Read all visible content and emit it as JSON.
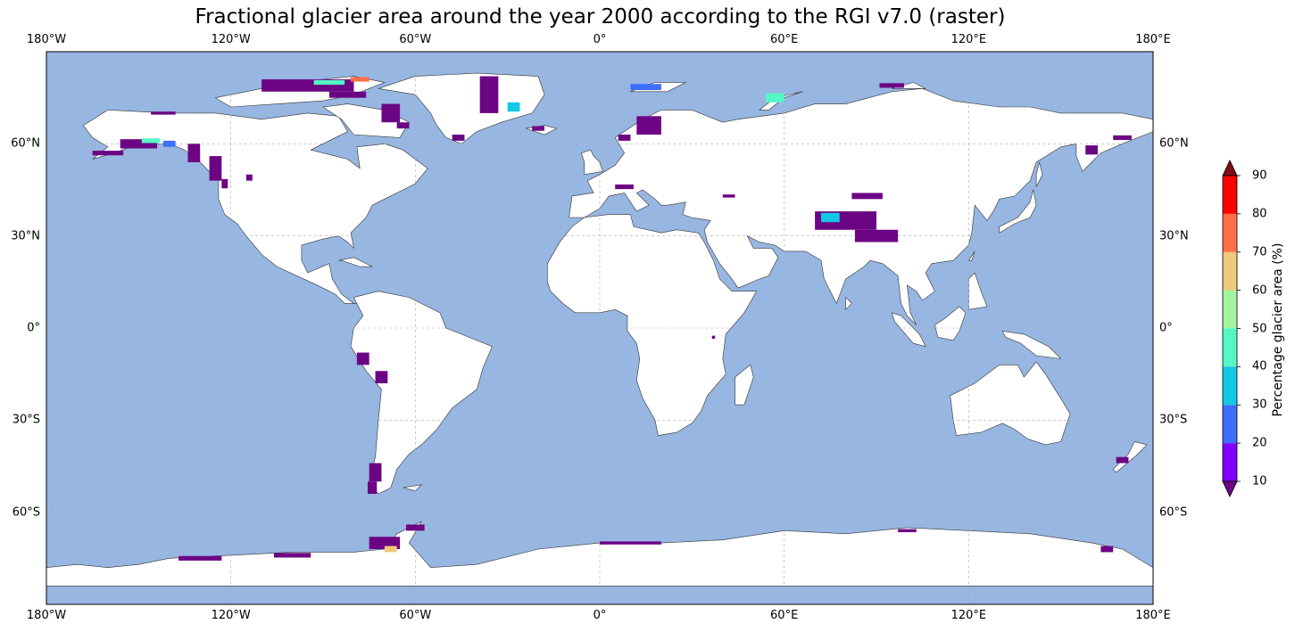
{
  "title": "Fractional glacier area around the year 2000 according to the RGI v7.0 (raster)",
  "lon_ticks": [
    "180°W",
    "120°W",
    "60°W",
    "0°",
    "60°E",
    "120°E",
    "180°E"
  ],
  "lat_ticks": [
    "60°N",
    "30°N",
    "0°",
    "30°S",
    "60°S"
  ],
  "lon_tick_values": [
    -180,
    -120,
    -60,
    0,
    60,
    120,
    180
  ],
  "lat_tick_values": [
    60,
    30,
    0,
    -30,
    -60
  ],
  "extent": {
    "lon": [
      -180,
      180
    ],
    "lat": [
      -90,
      90
    ]
  },
  "colors": {
    "ocean": "#97b6e1",
    "land": "#ffffff",
    "coast": "#333333",
    "gridline": "#aaaaaa",
    "glacier_low": "#6c0584"
  },
  "colorbar": {
    "label": "Percentage glacier area (%)",
    "tick_labels": [
      "10",
      "20",
      "30",
      "40",
      "50",
      "60",
      "70",
      "80",
      "90"
    ],
    "bounds": [
      10,
      20,
      30,
      40,
      50,
      60,
      70,
      80,
      90
    ],
    "colors": [
      "#8000ff",
      "#3e6ffa",
      "#12c8e6",
      "#56f6c6",
      "#a0f59e",
      "#f0c97a",
      "#ff7048",
      "#ff0000"
    ],
    "under_color": "#6c0584",
    "over_color": "#7f0d1c",
    "extend": "both"
  },
  "glacier_cells": [
    {
      "lon": -150,
      "lat": 60,
      "w": 12,
      "h": 3,
      "v": 15
    },
    {
      "lon": -146,
      "lat": 61,
      "w": 6,
      "h": 1.5,
      "v": 45
    },
    {
      "lon": -140,
      "lat": 60,
      "w": 4,
      "h": 2,
      "v": 25
    },
    {
      "lon": -132,
      "lat": 57,
      "w": 4,
      "h": 6,
      "v": 15
    },
    {
      "lon": -125,
      "lat": 52,
      "w": 4,
      "h": 8,
      "v": 15
    },
    {
      "lon": -122,
      "lat": 47,
      "w": 2,
      "h": 3,
      "v": 15
    },
    {
      "lon": -114,
      "lat": 49,
      "w": 2,
      "h": 2,
      "v": 15
    },
    {
      "lon": -160,
      "lat": 57,
      "w": 10,
      "h": 1.5,
      "v": 15
    },
    {
      "lon": -142,
      "lat": 70,
      "w": 8,
      "h": 1,
      "v": 15
    },
    {
      "lon": -95,
      "lat": 79,
      "w": 30,
      "h": 4,
      "v": 15
    },
    {
      "lon": -88,
      "lat": 80,
      "w": 10,
      "h": 1.5,
      "v": 45
    },
    {
      "lon": -78,
      "lat": 81,
      "w": 6,
      "h": 1.5,
      "v": 75
    },
    {
      "lon": -82,
      "lat": 76,
      "w": 12,
      "h": 2,
      "v": 15
    },
    {
      "lon": -68,
      "lat": 70,
      "w": 6,
      "h": 6,
      "v": 15
    },
    {
      "lon": -64,
      "lat": 66,
      "w": 4,
      "h": 2,
      "v": 15
    },
    {
      "lon": -36,
      "lat": 76,
      "w": 6,
      "h": 12,
      "v": 15
    },
    {
      "lon": -28,
      "lat": 72,
      "w": 4,
      "h": 3,
      "v": 35
    },
    {
      "lon": -46,
      "lat": 62,
      "w": 4,
      "h": 2,
      "v": 15
    },
    {
      "lon": -20,
      "lat": 65,
      "w": 4,
      "h": 1.5,
      "v": 15
    },
    {
      "lon": 15,
      "lat": 78.5,
      "w": 10,
      "h": 2,
      "v": 25
    },
    {
      "lon": 57,
      "lat": 75,
      "w": 6,
      "h": 3,
      "v": 45
    },
    {
      "lon": 95,
      "lat": 79,
      "w": 8,
      "h": 1.5,
      "v": 15
    },
    {
      "lon": 16,
      "lat": 66,
      "w": 8,
      "h": 6,
      "v": 15
    },
    {
      "lon": 8,
      "lat": 62,
      "w": 4,
      "h": 2,
      "v": 15
    },
    {
      "lon": 8,
      "lat": 46,
      "w": 6,
      "h": 1.5,
      "v": 15
    },
    {
      "lon": 42,
      "lat": 43,
      "w": 4,
      "h": 1,
      "v": 15
    },
    {
      "lon": 80,
      "lat": 35,
      "w": 20,
      "h": 6,
      "v": 15
    },
    {
      "lon": 75,
      "lat": 36,
      "w": 6,
      "h": 3,
      "v": 35
    },
    {
      "lon": 90,
      "lat": 30,
      "w": 14,
      "h": 4,
      "v": 15
    },
    {
      "lon": 87,
      "lat": 43,
      "w": 10,
      "h": 2,
      "v": 15
    },
    {
      "lon": 160,
      "lat": 58,
      "w": 4,
      "h": 3,
      "v": 15
    },
    {
      "lon": 170,
      "lat": 62,
      "w": 6,
      "h": 1.5,
      "v": 15
    },
    {
      "lon": -77,
      "lat": -10,
      "w": 4,
      "h": 4,
      "v": 15
    },
    {
      "lon": -71,
      "lat": -16,
      "w": 4,
      "h": 4,
      "v": 15
    },
    {
      "lon": -73,
      "lat": -47,
      "w": 4,
      "h": 6,
      "v": 15
    },
    {
      "lon": -74,
      "lat": -52,
      "w": 3,
      "h": 4,
      "v": 15
    },
    {
      "lon": 37,
      "lat": -3,
      "w": 1,
      "h": 1,
      "v": 15
    },
    {
      "lon": 170,
      "lat": -43,
      "w": 4,
      "h": 2,
      "v": 15
    },
    {
      "lon": -70,
      "lat": -70,
      "w": 10,
      "h": 4,
      "v": 15
    },
    {
      "lon": -68,
      "lat": -72,
      "w": 4,
      "h": 2,
      "v": 65
    },
    {
      "lon": -60,
      "lat": -65,
      "w": 6,
      "h": 2,
      "v": 15
    },
    {
      "lon": -100,
      "lat": -74,
      "w": 12,
      "h": 1.5,
      "v": 15
    },
    {
      "lon": -130,
      "lat": -75,
      "w": 14,
      "h": 1.5,
      "v": 15
    },
    {
      "lon": 10,
      "lat": -70,
      "w": 20,
      "h": 1,
      "v": 15
    },
    {
      "lon": 100,
      "lat": -66,
      "w": 6,
      "h": 1,
      "v": 15
    },
    {
      "lon": 165,
      "lat": -72,
      "w": 4,
      "h": 2,
      "v": 15
    }
  ]
}
